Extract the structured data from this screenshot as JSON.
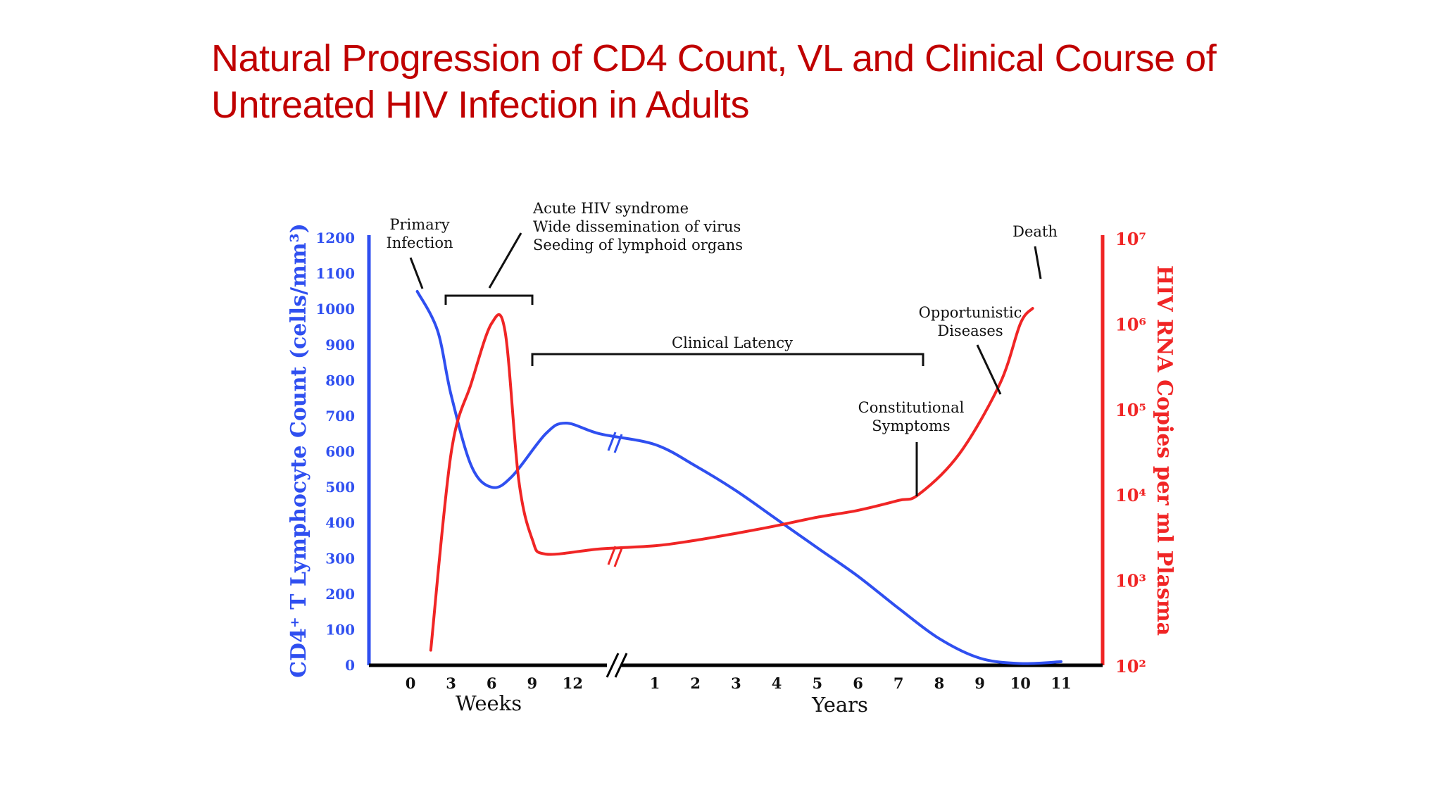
{
  "slide": {
    "title_lines": [
      "Natural Progression of CD4 Count, VL and Clinical Course of",
      "Untreated HIV Infection in Adults"
    ]
  },
  "colors": {
    "title": "#c00000",
    "cd4": "#2f4ff0",
    "viral_load": "#f02525",
    "annotation": "#111111"
  },
  "chart_data": {
    "type": "line",
    "title": "",
    "x_axis": {
      "weeks_ticks": [
        "0",
        "3",
        "6",
        "9",
        "12"
      ],
      "years_ticks": [
        "1",
        "2",
        "3",
        "4",
        "5",
        "6",
        "7",
        "8",
        "9",
        "10",
        "11"
      ],
      "weeks_label": "Weeks",
      "years_label": "Years",
      "break": "//"
    },
    "y_left": {
      "label": "CD4⁺ T Lymphocyte Count (cells/mm³)",
      "ticks": [
        "0",
        "100",
        "200",
        "300",
        "400",
        "500",
        "600",
        "700",
        "800",
        "900",
        "1000",
        "1100",
        "1200"
      ],
      "range": [
        0,
        1200
      ]
    },
    "y_right": {
      "label": "HIV RNA Copies per ml Plasma",
      "ticks": [
        "10²",
        "10³",
        "10⁴",
        "10⁵",
        "10⁶",
        "10⁷"
      ],
      "scale": "log",
      "range": [
        100,
        10000000
      ]
    },
    "series": [
      {
        "name": "CD4",
        "axis": "left",
        "weeks": [
          [
            0.5,
            1050
          ],
          [
            2,
            940
          ],
          [
            3,
            760
          ],
          [
            4.5,
            560
          ],
          [
            6,
            500
          ],
          [
            7.5,
            530
          ],
          [
            10,
            650
          ],
          [
            11.5,
            680
          ],
          [
            14,
            650
          ]
        ],
        "years": [
          [
            1,
            620
          ],
          [
            2,
            560
          ],
          [
            3,
            490
          ],
          [
            4,
            410
          ],
          [
            5,
            330
          ],
          [
            6,
            250
          ],
          [
            7,
            160
          ],
          [
            8,
            75
          ],
          [
            9,
            20
          ],
          [
            10,
            5
          ],
          [
            11,
            10
          ]
        ]
      },
      {
        "name": "Viral Load",
        "axis": "right",
        "weeks": [
          [
            1.5,
            150
          ],
          [
            3,
            30000
          ],
          [
            4.5,
            200000
          ],
          [
            6,
            1000000
          ],
          [
            7,
            800000
          ],
          [
            8,
            15000
          ],
          [
            9,
            3000
          ],
          [
            10,
            2000
          ],
          [
            14,
            2300
          ]
        ],
        "years": [
          [
            1,
            2500
          ],
          [
            2,
            2900
          ],
          [
            3,
            3500
          ],
          [
            4,
            4300
          ],
          [
            5,
            5400
          ],
          [
            6,
            6500
          ],
          [
            7,
            8500
          ],
          [
            7.5,
            10000
          ],
          [
            8.5,
            30000
          ],
          [
            9.5,
            200000
          ],
          [
            10,
            1000000
          ],
          [
            10.3,
            1500000
          ]
        ]
      }
    ],
    "annotations": {
      "primary_infection": [
        "Primary",
        "Infection"
      ],
      "acute": [
        "Acute HIV syndrome",
        "Wide dissemination of virus",
        "Seeding of lymphoid organs"
      ],
      "latency": "Clinical Latency",
      "constitutional": [
        "Constitutional",
        "Symptoms"
      ],
      "opportunistic": [
        "Opportunistic",
        "Diseases"
      ],
      "death": "Death"
    },
    "grid": false,
    "legend": "none"
  }
}
